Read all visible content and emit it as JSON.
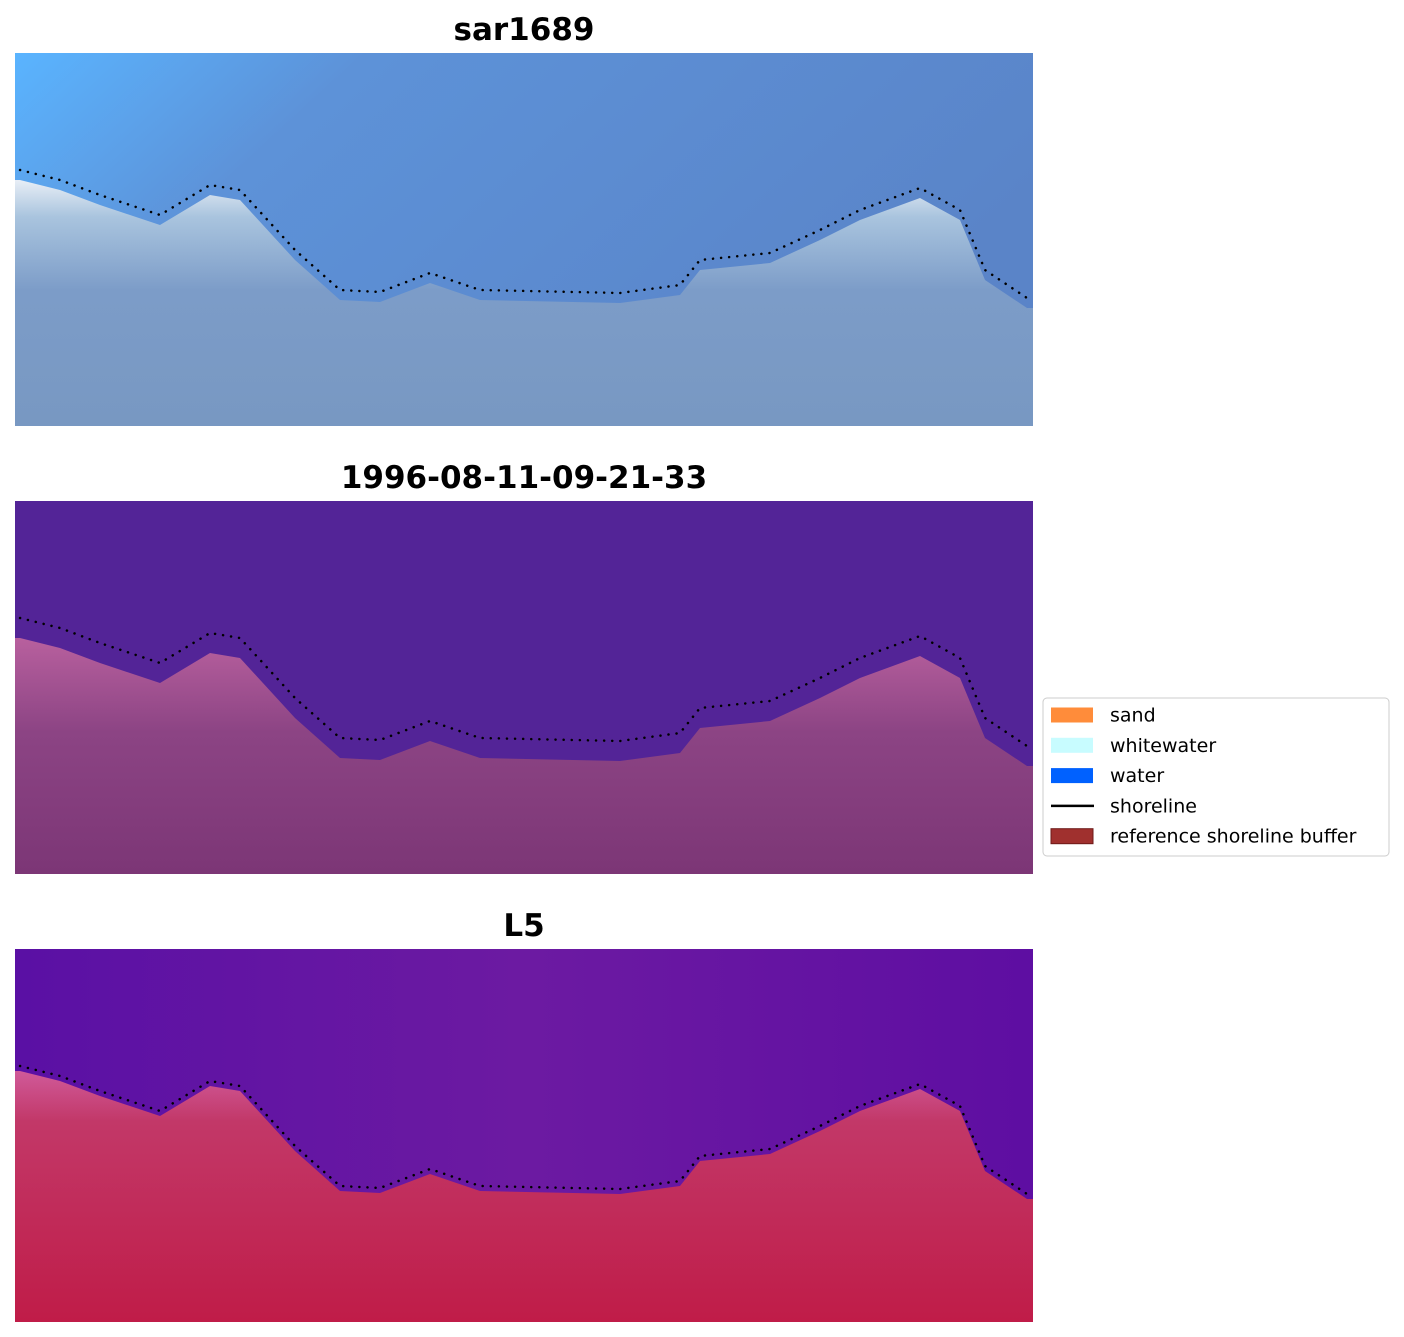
{
  "panels": [
    {
      "title": "sar1689"
    },
    {
      "title": "1996-08-11-09-21-33"
    },
    {
      "title": "L5"
    }
  ],
  "legend": {
    "entries": [
      {
        "label": "sand",
        "kind": "patch",
        "color": "#ff8c3a"
      },
      {
        "label": "whitewater",
        "kind": "patch",
        "color": "#c8fcff"
      },
      {
        "label": "water",
        "kind": "patch",
        "color": "#0061ff"
      },
      {
        "label": "shoreline",
        "kind": "line",
        "color": "#000000"
      },
      {
        "label": "reference shoreline buffer",
        "kind": "patch",
        "color": "#a0302e"
      }
    ]
  }
}
